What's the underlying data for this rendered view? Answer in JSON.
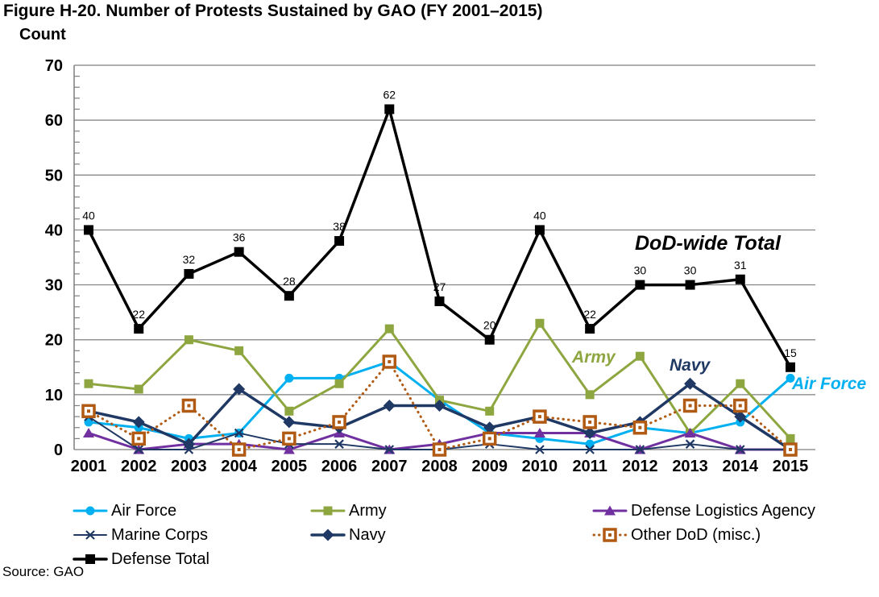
{
  "figure": {
    "title": "Figure H-20. Number of Protests Sustained by GAO (FY 2001–2015)",
    "y_axis_title": "Count",
    "source": "Source: GAO"
  },
  "annotations": {
    "dod_total": "DoD-wide Total",
    "army": "Army",
    "navy": "Navy",
    "air_force": "Air Force"
  },
  "colors": {
    "air_force": "#00B0F0",
    "army": "#8EA640",
    "dla": "#7030A0",
    "marine_corps": "#1F3864",
    "navy": "#1F3864",
    "other_dod": "#B05A14",
    "defense_total": "#000000",
    "gridline": "#7F7F7F"
  },
  "chart_data": {
    "type": "line",
    "title": "Figure H-20. Number of Protests Sustained by GAO (FY 2001–2015)",
    "xlabel": "",
    "ylabel": "Count",
    "ylim": [
      0,
      70
    ],
    "ytick_step": 10,
    "yminor_step": 2,
    "grid": true,
    "legend_position": "bottom",
    "x": [
      2001,
      2002,
      2003,
      2004,
      2005,
      2006,
      2007,
      2008,
      2009,
      2010,
      2011,
      2012,
      2013,
      2014,
      2015
    ],
    "series": [
      {
        "name": "Air Force",
        "color": "#00B0F0",
        "marker": "circle",
        "line_width": 3,
        "line_style": "solid",
        "values": [
          5,
          4,
          2,
          3,
          13,
          13,
          16,
          9,
          3,
          2,
          1,
          4,
          3,
          5,
          13
        ]
      },
      {
        "name": "Army",
        "color": "#8EA640",
        "marker": "square",
        "line_width": 3,
        "line_style": "solid",
        "values": [
          12,
          11,
          20,
          18,
          7,
          12,
          22,
          9,
          7,
          23,
          10,
          17,
          3,
          12,
          2
        ]
      },
      {
        "name": "Defense Logistics Agency",
        "color": "#7030A0",
        "marker": "triangle",
        "line_width": 3,
        "line_style": "solid",
        "values": [
          3,
          0,
          1,
          1,
          0,
          3,
          0,
          1,
          3,
          3,
          3,
          0,
          3,
          0,
          0
        ]
      },
      {
        "name": "Marine Corps",
        "color": "#1F3864",
        "marker": "x",
        "line_width": 2,
        "line_style": "solid",
        "values": [
          6,
          0,
          0,
          3,
          1,
          1,
          0,
          0,
          1,
          0,
          0,
          0,
          1,
          0,
          0
        ]
      },
      {
        "name": "Navy",
        "color": "#1F3864",
        "marker": "diamond",
        "line_width": 3.5,
        "line_style": "solid",
        "values": [
          7,
          5,
          1,
          11,
          5,
          4,
          8,
          8,
          4,
          6,
          3,
          5,
          12,
          6,
          0
        ]
      },
      {
        "name": "Other DoD (misc.)",
        "color": "#B05A14",
        "marker": "square-dot",
        "line_width": 3,
        "line_style": "dotted",
        "values": [
          7,
          2,
          8,
          0,
          2,
          5,
          16,
          0,
          2,
          6,
          5,
          4,
          8,
          8,
          0
        ]
      },
      {
        "name": "Defense Total",
        "color": "#000000",
        "marker": "square-filled",
        "line_width": 3.5,
        "line_style": "solid",
        "values": [
          40,
          22,
          32,
          36,
          28,
          38,
          62,
          27,
          20,
          40,
          22,
          30,
          30,
          31,
          15
        ],
        "data_labels": true
      }
    ]
  }
}
